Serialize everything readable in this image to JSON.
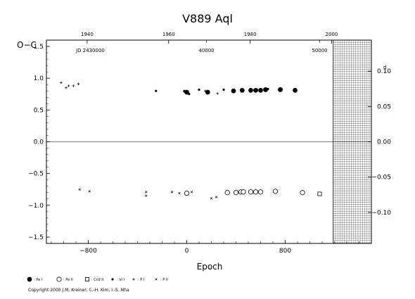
{
  "chart_data": {
    "type": "scatter",
    "title": "V889  Aql",
    "xlabel": "Epoch",
    "ylabel": "O−C",
    "xlim": [
      -1140,
      1500
    ],
    "ylim": [
      -1.6,
      1.6
    ],
    "right_ylim": [
      -0.144,
      0.144
    ],
    "x_ticks": [
      -800,
      0,
      800
    ],
    "y_ticks": [
      1.5,
      1.0,
      0.5,
      0.0,
      -0.5,
      -1.0,
      -1.5
    ],
    "y_tick_labels": [
      "1.5",
      "1.0",
      "0.5",
      "0.0",
      "−0.5",
      "−1.0",
      "−1.5"
    ],
    "right_y_ticks": [
      0.1,
      0.05,
      0.0,
      -0.05,
      -0.1
    ],
    "right_y_tick_labels": [
      "0.10",
      "0.05",
      "0.00",
      "−0.05",
      "−0.10"
    ],
    "right_ylabel": "d",
    "year_ticks": [
      1940,
      1960,
      1980,
      2000
    ],
    "jd_label": "JD  2430000",
    "jd_ticks": [
      {
        "label": "40000",
        "epoch": 160
      },
      {
        "label": "50000",
        "epoch": 1080
      }
    ],
    "zero_line": 0.0,
    "hatched_region": {
      "x_start": 1190,
      "x_end": 1500
    },
    "series": [
      {
        "name": ": Pe I",
        "marker": "filled-circle",
        "points": [
          [
            0,
            0.78
          ],
          [
            170,
            0.78
          ],
          [
            380,
            0.8
          ],
          [
            450,
            0.81
          ],
          [
            520,
            0.81
          ],
          [
            560,
            0.81
          ],
          [
            600,
            0.81
          ],
          [
            640,
            0.82
          ],
          [
            760,
            0.82
          ],
          [
            880,
            0.81
          ]
        ]
      },
      {
        "name": ": Pe II",
        "marker": "open-circle",
        "points": [
          [
            0,
            -0.81
          ],
          [
            330,
            -0.8
          ],
          [
            400,
            -0.8
          ],
          [
            440,
            -0.79
          ],
          [
            460,
            -0.79
          ],
          [
            520,
            -0.79
          ],
          [
            560,
            -0.79
          ],
          [
            600,
            -0.79
          ],
          [
            720,
            -0.78
          ],
          [
            940,
            -0.8
          ]
        ]
      },
      {
        "name": ": Ccd II",
        "marker": "open-square",
        "points": [
          [
            1080,
            -0.82
          ]
        ]
      },
      {
        "name": ": Vi I",
        "marker": "small-dot",
        "points": [
          [
            -250,
            0.8
          ],
          [
            -20,
            0.8
          ],
          [
            20,
            0.75
          ],
          [
            100,
            0.82
          ],
          [
            300,
            0.82
          ],
          [
            570,
            0.82
          ],
          [
            660,
            0.83
          ],
          [
            770,
            0.83
          ],
          [
            880,
            0.83
          ]
        ]
      },
      {
        "name": ": P I",
        "marker": "plus",
        "points": [
          [
            -1020,
            0.93
          ],
          [
            -980,
            0.85
          ],
          [
            -960,
            0.88
          ],
          [
            -920,
            0.88
          ],
          [
            -880,
            0.91
          ],
          [
            -20,
            0.79
          ],
          [
            150,
            0.8
          ],
          [
            250,
            0.76
          ]
        ]
      },
      {
        "name": ": P II",
        "marker": "cross",
        "points": [
          [
            -870,
            -0.75
          ],
          [
            -790,
            -0.78
          ],
          [
            -330,
            -0.79
          ],
          [
            -330,
            -0.85
          ],
          [
            -120,
            -0.79
          ],
          [
            -60,
            -0.81
          ],
          [
            40,
            -0.79
          ],
          [
            200,
            -0.89
          ],
          [
            240,
            -0.87
          ]
        ]
      }
    ]
  },
  "copyright": "Copyright 2000 J.M. Kreiner, C.-H. Kim, I.-S. Nha"
}
